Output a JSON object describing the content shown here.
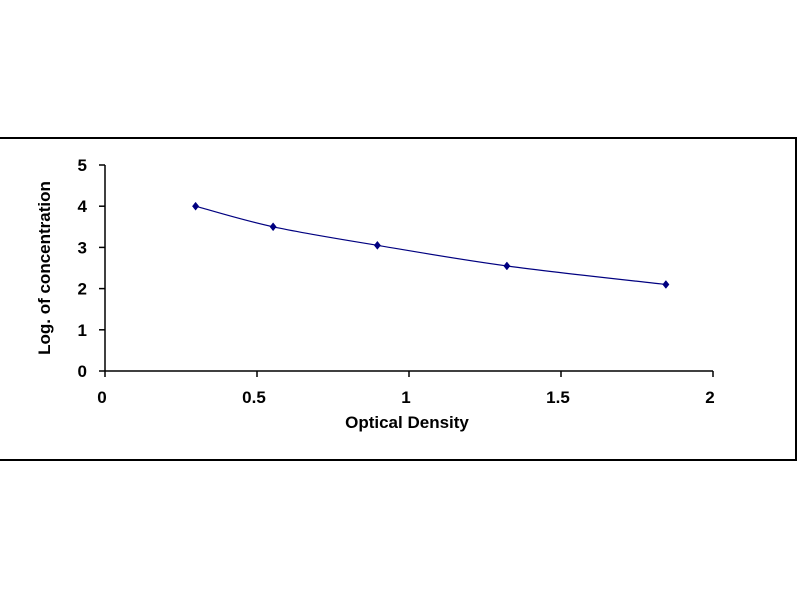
{
  "chart_data": {
    "type": "line",
    "title": "",
    "xlabel": "Optical Density",
    "ylabel": "Log. of concentration",
    "xlim": [
      0,
      2
    ],
    "ylim": [
      0,
      5
    ],
    "x_ticks": [
      "0",
      "0.5",
      "1",
      "1.5",
      "2"
    ],
    "y_ticks": [
      "0",
      "1",
      "2",
      "3",
      "4",
      "5"
    ],
    "grid": false,
    "legend": "none",
    "series": [
      {
        "x": [
          0.298,
          0.553,
          0.896,
          1.322,
          1.845
        ],
        "y": [
          4.0,
          3.5,
          3.05,
          2.55,
          2.1
        ],
        "color": "#000080",
        "marker": "diamond",
        "curve": "smoothed"
      }
    ]
  }
}
